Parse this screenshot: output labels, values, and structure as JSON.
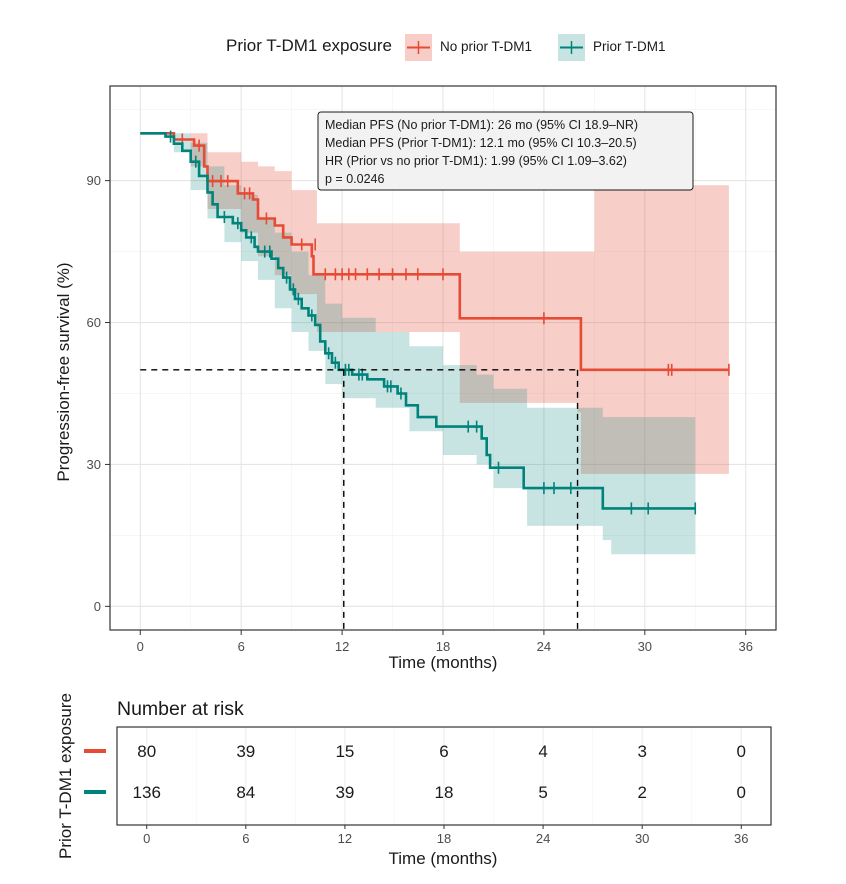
{
  "legend": {
    "title": "Prior T-DM1 exposure",
    "entries": [
      "No prior T-DM1",
      "Prior T-DM1"
    ]
  },
  "colors": {
    "no_prior": "#e64b35",
    "prior": "#00837b",
    "grid": "#e5e5e5",
    "panel_border": "#333333"
  },
  "annotation": {
    "lines": [
      "Median PFS (No prior T-DM1): 26 mo (95% CI 18.9–NR)",
      "Median PFS (Prior T-DM1): 12.1 mo (95% CI 10.3–20.5)",
      "HR (Prior vs no prior T-DM1): 1.99 (95% CI 1.09–3.62)",
      "p = 0.0246"
    ]
  },
  "risk_table": {
    "title": "Number at risk",
    "ylabel": "Prior T-DM1 exposure",
    "xlabel": "Time (months)",
    "times": [
      0,
      6,
      12,
      18,
      24,
      30,
      36
    ],
    "rows": [
      {
        "group": "No prior T-DM1",
        "counts": [
          80,
          39,
          15,
          6,
          4,
          3,
          0
        ]
      },
      {
        "group": "Prior T-DM1",
        "counts": [
          136,
          84,
          39,
          18,
          5,
          2,
          0
        ]
      }
    ]
  },
  "chart_data": {
    "type": "line",
    "subtype": "kaplan-meier",
    "xlabel": "Time (months)",
    "ylabel": "Progression-free survival (%)",
    "xlim": [
      -1.8,
      37.8
    ],
    "ylim": [
      -5,
      110
    ],
    "xticks": [
      0,
      6,
      12,
      18,
      24,
      30,
      36
    ],
    "yticks": [
      0,
      30,
      60,
      90
    ],
    "grid": true,
    "legend_position": "top",
    "median_line_y": 50,
    "median_times": [
      12.1,
      26
    ],
    "series": [
      {
        "name": "No prior T-DM1",
        "color": "#e64b35",
        "steps": [
          [
            0,
            100
          ],
          [
            2,
            98.7
          ],
          [
            3.2,
            97.4
          ],
          [
            3.8,
            93
          ],
          [
            4,
            89.9
          ],
          [
            5.8,
            87.3
          ],
          [
            6.7,
            86
          ],
          [
            7,
            82
          ],
          [
            8,
            80.5
          ],
          [
            8.5,
            78
          ],
          [
            9,
            76.5
          ],
          [
            10.2,
            74
          ],
          [
            10.3,
            70.2
          ],
          [
            19,
            70.2
          ],
          [
            19,
            60.9
          ],
          [
            26.2,
            60.9
          ],
          [
            26.2,
            50
          ],
          [
            35,
            50
          ]
        ],
        "ci_upper": [
          [
            0,
            100
          ],
          [
            3,
            100
          ],
          [
            4,
            96
          ],
          [
            6,
            94
          ],
          [
            7,
            93
          ],
          [
            8,
            92
          ],
          [
            9,
            88
          ],
          [
            10.5,
            81
          ],
          [
            19,
            81
          ],
          [
            19,
            75
          ],
          [
            26,
            75
          ],
          [
            26.2,
            75
          ],
          [
            27,
            89
          ],
          [
            35,
            89
          ]
        ],
        "ci_lower": [
          [
            0,
            100
          ],
          [
            3,
            93
          ],
          [
            4,
            84
          ],
          [
            6,
            79
          ],
          [
            7,
            74
          ],
          [
            8,
            70
          ],
          [
            9,
            66
          ],
          [
            10.5,
            58
          ],
          [
            15,
            58
          ],
          [
            19,
            58
          ],
          [
            19,
            43
          ],
          [
            26,
            41
          ],
          [
            26.2,
            28
          ],
          [
            35,
            28
          ]
        ],
        "censor_times": [
          [
            2.5,
            98.7
          ],
          [
            3.5,
            97.4
          ],
          [
            4.3,
            89.9
          ],
          [
            4.8,
            89.9
          ],
          [
            5.2,
            89.9
          ],
          [
            6.2,
            87.3
          ],
          [
            6.5,
            87.3
          ],
          [
            7.5,
            82
          ],
          [
            9.6,
            76.5
          ],
          [
            10.4,
            76.5
          ],
          [
            11,
            70.2
          ],
          [
            11.6,
            70.2
          ],
          [
            12,
            70.2
          ],
          [
            12.4,
            70.2
          ],
          [
            12.8,
            70.2
          ],
          [
            13.5,
            70.2
          ],
          [
            14.2,
            70.2
          ],
          [
            15,
            70.2
          ],
          [
            15.8,
            70.2
          ],
          [
            16.5,
            70.2
          ],
          [
            18,
            70.2
          ],
          [
            24,
            60.9
          ],
          [
            31.4,
            50
          ],
          [
            31.6,
            50
          ],
          [
            35,
            50
          ]
        ]
      },
      {
        "name": "Prior T-DM1",
        "color": "#00837b",
        "steps": [
          [
            0,
            100
          ],
          [
            1.5,
            99.3
          ],
          [
            2,
            97.8
          ],
          [
            2.5,
            96.3
          ],
          [
            3,
            94
          ],
          [
            3.5,
            91
          ],
          [
            4,
            87.5
          ],
          [
            4.3,
            85
          ],
          [
            4.6,
            82.3
          ],
          [
            5.5,
            81
          ],
          [
            6,
            79.5
          ],
          [
            6.3,
            78
          ],
          [
            6.8,
            76
          ],
          [
            7,
            75
          ],
          [
            7.8,
            73.5
          ],
          [
            8.2,
            71.5
          ],
          [
            8.5,
            69.5
          ],
          [
            8.9,
            67
          ],
          [
            9.2,
            65
          ],
          [
            9.6,
            63
          ],
          [
            10,
            61.5
          ],
          [
            10.4,
            59.5
          ],
          [
            10.7,
            56
          ],
          [
            11,
            53.5
          ],
          [
            11.4,
            51.5
          ],
          [
            11.8,
            50
          ],
          [
            12.6,
            49
          ],
          [
            13.5,
            48
          ],
          [
            14.5,
            46.5
          ],
          [
            15.3,
            45
          ],
          [
            15.8,
            42.5
          ],
          [
            16.5,
            40
          ],
          [
            17.6,
            38
          ],
          [
            20.3,
            35.5
          ],
          [
            20.6,
            32
          ],
          [
            20.8,
            29.3
          ],
          [
            22.8,
            29.3
          ],
          [
            22.8,
            25
          ],
          [
            27.5,
            25
          ],
          [
            27.5,
            20.7
          ],
          [
            33,
            20.7
          ]
        ],
        "ci_upper": [
          [
            0,
            100
          ],
          [
            2,
            100
          ],
          [
            3,
            98
          ],
          [
            4,
            93
          ],
          [
            5,
            89
          ],
          [
            6,
            87
          ],
          [
            7,
            82
          ],
          [
            8,
            79
          ],
          [
            9,
            75
          ],
          [
            10,
            70
          ],
          [
            11,
            64
          ],
          [
            12,
            61
          ],
          [
            14,
            58
          ],
          [
            16,
            55
          ],
          [
            18,
            51
          ],
          [
            20,
            49
          ],
          [
            21,
            46
          ],
          [
            23,
            42
          ],
          [
            26,
            42
          ],
          [
            27.5,
            40
          ],
          [
            33,
            40
          ]
        ],
        "ci_lower": [
          [
            0,
            100
          ],
          [
            2,
            96
          ],
          [
            3,
            88
          ],
          [
            4,
            82
          ],
          [
            5,
            77
          ],
          [
            6,
            73
          ],
          [
            7,
            69
          ],
          [
            8,
            63
          ],
          [
            9,
            58
          ],
          [
            10,
            54
          ],
          [
            11,
            47
          ],
          [
            12,
            44
          ],
          [
            14,
            42
          ],
          [
            16,
            37
          ],
          [
            18,
            32
          ],
          [
            20,
            30
          ],
          [
            21,
            25
          ],
          [
            23,
            17
          ],
          [
            27.5,
            14
          ],
          [
            28,
            11
          ],
          [
            33,
            11
          ]
        ],
        "censor_times": [
          [
            1.8,
            99.3
          ],
          [
            3.3,
            94
          ],
          [
            5,
            82.3
          ],
          [
            5.8,
            81
          ],
          [
            6.6,
            78
          ],
          [
            7.4,
            75
          ],
          [
            7.7,
            75
          ],
          [
            8.7,
            69.5
          ],
          [
            9.1,
            67
          ],
          [
            9.4,
            65
          ],
          [
            10.2,
            61.5
          ],
          [
            11.2,
            53.5
          ],
          [
            11.6,
            51.5
          ],
          [
            12.2,
            50
          ],
          [
            12.4,
            50
          ],
          [
            13,
            49
          ],
          [
            13.2,
            49
          ],
          [
            14.7,
            46.5
          ],
          [
            14.9,
            46.5
          ],
          [
            15.5,
            45
          ],
          [
            19.5,
            38
          ],
          [
            20,
            38
          ],
          [
            21.3,
            29.3
          ],
          [
            24,
            25
          ],
          [
            24.6,
            25
          ],
          [
            25.6,
            25
          ],
          [
            29.2,
            20.7
          ],
          [
            30.2,
            20.7
          ],
          [
            33,
            20.7
          ]
        ]
      }
    ]
  }
}
